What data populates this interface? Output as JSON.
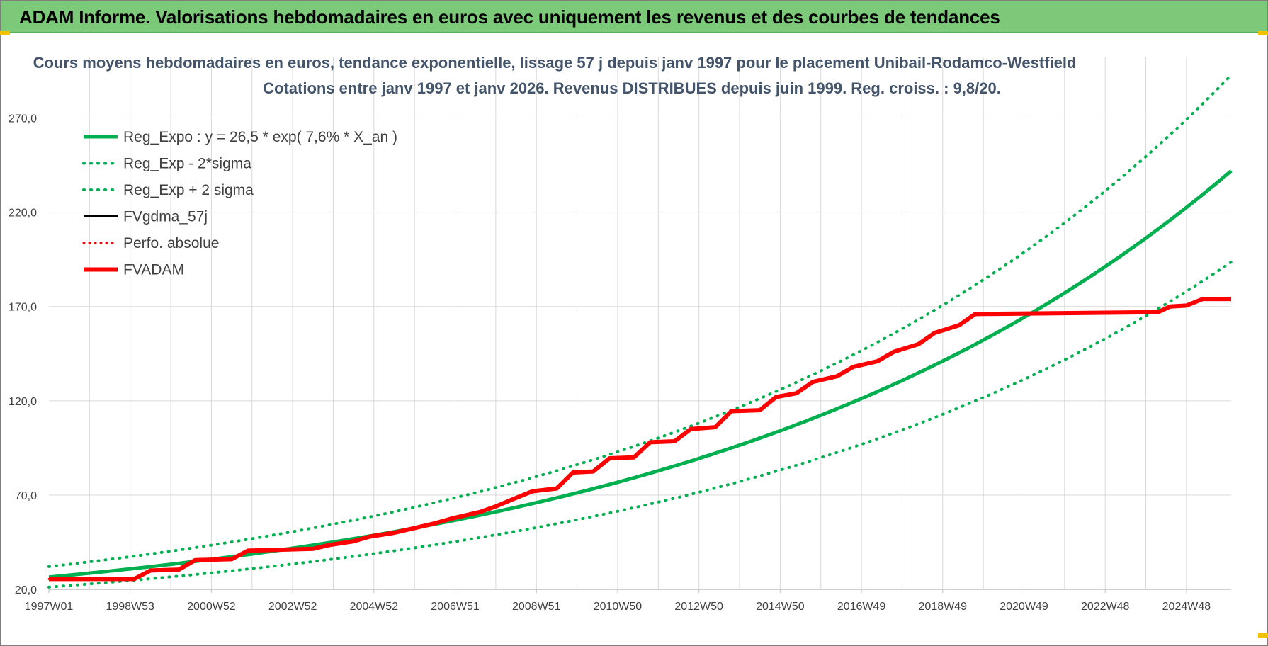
{
  "banner": {
    "title": "ADAM Informe. Valorisations hebdomadaires en euros avec uniquement les revenus et des courbes de tendances"
  },
  "colors": {
    "banner_bg": "#7dc97a",
    "green": "#00b050",
    "red": "#ff0000",
    "black": "#000000",
    "grid": "#d9d9d9",
    "title": "#44546a"
  },
  "chart_data": {
    "type": "line",
    "title": "Cours moyens hebdomadaires en euros, tendance exponentielle, lissage 57 j depuis janv 1997 pour le placement Unibail-Rodamco-Westfield",
    "subtitle": "Cotations entre janv 1997 et janv 2026. Revenus DISTRIBUES depuis juin 1999. Reg. croiss. : 9,8/20.",
    "xlabel": "",
    "ylabel": "",
    "x_range": [
      1997.0,
      2026.1
    ],
    "ylim": [
      20,
      295
    ],
    "y_ticks": [
      20,
      70,
      120,
      170,
      220,
      270
    ],
    "y_tick_labels": [
      "20,0",
      "70,0",
      "120,0",
      "170,0",
      "220,0",
      "270,0"
    ],
    "x_ticks": [
      1997.0,
      1999.0,
      2001.0,
      2003.0,
      2005.0,
      2007.0,
      2009.0,
      2011.0,
      2013.0,
      2015.0,
      2017.0,
      2019.0,
      2021.0,
      2023.0,
      2025.0
    ],
    "x_tick_labels": [
      "1997W01",
      "1998W53",
      "2000W52",
      "2002W52",
      "2004W52",
      "2006W51",
      "2008W51",
      "2010W50",
      "2012W50",
      "2014W50",
      "2016W49",
      "2018W49",
      "2020W49",
      "2022W48",
      "2024W48"
    ],
    "grid": true,
    "legend_position": "top-left",
    "trend": {
      "a": 26.5,
      "rate": 0.076,
      "sigma_factor_low": 0.8,
      "sigma_factor_high": 1.21
    },
    "series": [
      {
        "name": "Reg_Expo : y = 26,5 * exp( 7,6% *  X_an )",
        "style": "solid",
        "color": "#00b050",
        "width": 5,
        "x": [
          1997.0,
          1999.0,
          2001.0,
          2003.0,
          2005.0,
          2007.0,
          2009.0,
          2011.0,
          2013.0,
          2015.0,
          2017.0,
          2019.0,
          2021.0,
          2023.0,
          2025.0,
          2026.1
        ],
        "y": [
          26.5,
          30.9,
          36.0,
          41.9,
          48.8,
          56.9,
          66.3,
          77.2,
          90.0,
          104.8,
          122.1,
          142.3,
          165.8,
          193.2,
          225.1,
          245.0
        ]
      },
      {
        "name": "Reg_Exp - 2*sigma",
        "style": "dotted",
        "color": "#00b050",
        "width": 4,
        "x": [
          1997.0,
          1999.0,
          2001.0,
          2003.0,
          2005.0,
          2007.0,
          2009.0,
          2011.0,
          2013.0,
          2015.0,
          2017.0,
          2019.0,
          2021.0,
          2023.0,
          2025.0,
          2026.1
        ],
        "y": [
          21.2,
          24.7,
          28.8,
          33.5,
          39.0,
          45.5,
          53.0,
          61.8,
          72.0,
          83.8,
          97.7,
          113.8,
          132.6,
          154.6,
          180.1,
          196.0
        ]
      },
      {
        "name": "Reg_Exp + 2 sigma",
        "style": "dotted",
        "color": "#00b050",
        "width": 4,
        "x": [
          1997.0,
          1999.0,
          2001.0,
          2003.0,
          2005.0,
          2007.0,
          2009.0,
          2011.0,
          2013.0,
          2015.0,
          2017.0,
          2019.0,
          2021.0,
          2023.0,
          2025.0,
          2026.1
        ],
        "y": [
          32.1,
          37.4,
          43.6,
          50.7,
          59.0,
          68.8,
          80.2,
          93.4,
          108.9,
          126.8,
          147.7,
          172.2,
          200.6,
          233.8,
          272.4,
          296.5
        ]
      },
      {
        "name": "FVgdma_57j",
        "style": "solid",
        "color": "#000000",
        "width": 3,
        "x": [
          1997.0,
          1999.1,
          1999.5,
          2000.2,
          2000.6,
          2001.5,
          2001.9,
          2003.5,
          2003.9,
          2004.5,
          2004.9,
          2005.5,
          2005.9,
          2006.5,
          2006.9,
          2007.6,
          2008.0,
          2008.5,
          2008.9,
          2009.5,
          2009.9,
          2010.4,
          2010.8,
          2011.4,
          2011.8,
          2012.4,
          2012.8,
          2013.4,
          2013.8,
          2014.5,
          2014.9,
          2015.4,
          2015.8,
          2016.4,
          2016.8,
          2017.4,
          2017.8,
          2018.4,
          2018.8,
          2019.4,
          2019.8,
          2024.3,
          2024.6,
          2025.0,
          2025.4,
          2026.1
        ],
        "y": [
          25.5,
          25.5,
          30.0,
          30.5,
          35.5,
          36.0,
          40.5,
          41.5,
          43.5,
          45.5,
          48.0,
          50.0,
          52.0,
          55.0,
          57.5,
          61.0,
          64.0,
          68.5,
          72.0,
          73.5,
          82.0,
          82.5,
          89.5,
          90.0,
          98.0,
          98.5,
          105.0,
          106.0,
          114.5,
          115.0,
          122.0,
          124.0,
          130.0,
          133.0,
          138.0,
          141.0,
          146.0,
          150.0,
          156.0,
          160.0,
          166.0,
          167.0,
          170.0,
          170.5,
          174.0,
          174.0
        ]
      },
      {
        "name": "Perfo. absolue",
        "style": "dotted",
        "color": "#ff0000",
        "width": 3,
        "x": [
          1997.0,
          1999.1,
          1999.5,
          2000.2,
          2000.6,
          2001.5,
          2001.9,
          2003.5,
          2003.9,
          2004.5,
          2004.9,
          2005.5,
          2005.9,
          2006.5,
          2006.9,
          2007.6,
          2008.0,
          2008.5,
          2008.9,
          2009.5,
          2009.9,
          2010.4,
          2010.8,
          2011.4,
          2011.8,
          2012.4,
          2012.8,
          2013.4,
          2013.8,
          2014.5,
          2014.9,
          2015.4,
          2015.8,
          2016.4,
          2016.8,
          2017.4,
          2017.8,
          2018.4,
          2018.8,
          2019.4,
          2019.8,
          2024.3,
          2024.6,
          2025.0,
          2025.4,
          2026.1
        ],
        "y": [
          25.5,
          25.5,
          30.0,
          30.5,
          35.5,
          36.0,
          40.5,
          41.5,
          43.5,
          45.5,
          48.0,
          50.0,
          52.0,
          55.0,
          57.5,
          61.0,
          64.0,
          68.5,
          72.0,
          73.5,
          82.0,
          82.5,
          89.5,
          90.0,
          98.0,
          98.5,
          105.0,
          106.0,
          114.5,
          115.0,
          122.0,
          124.0,
          130.0,
          133.0,
          138.0,
          141.0,
          146.0,
          150.0,
          156.0,
          160.0,
          166.0,
          167.0,
          170.0,
          170.5,
          174.0,
          174.0
        ]
      },
      {
        "name": "FVADAM",
        "style": "solid",
        "color": "#ff0000",
        "width": 6,
        "x": [
          1997.0,
          1999.1,
          1999.5,
          2000.2,
          2000.6,
          2001.5,
          2001.9,
          2003.5,
          2003.9,
          2004.5,
          2004.9,
          2005.5,
          2005.9,
          2006.5,
          2006.9,
          2007.6,
          2008.0,
          2008.5,
          2008.9,
          2009.5,
          2009.9,
          2010.4,
          2010.8,
          2011.4,
          2011.8,
          2012.4,
          2012.8,
          2013.4,
          2013.8,
          2014.5,
          2014.9,
          2015.4,
          2015.8,
          2016.4,
          2016.8,
          2017.4,
          2017.8,
          2018.4,
          2018.8,
          2019.4,
          2019.8,
          2024.3,
          2024.6,
          2025.0,
          2025.4,
          2026.1
        ],
        "y": [
          25.5,
          25.5,
          30.0,
          30.5,
          35.5,
          36.0,
          40.5,
          41.5,
          43.5,
          45.5,
          48.0,
          50.0,
          52.0,
          55.0,
          57.5,
          61.0,
          64.0,
          68.5,
          72.0,
          73.5,
          82.0,
          82.5,
          89.5,
          90.0,
          98.0,
          98.5,
          105.0,
          106.0,
          114.5,
          115.0,
          122.0,
          124.0,
          130.0,
          133.0,
          138.0,
          141.0,
          146.0,
          150.0,
          156.0,
          160.0,
          166.0,
          167.0,
          170.0,
          170.5,
          174.0,
          174.0
        ]
      }
    ]
  }
}
